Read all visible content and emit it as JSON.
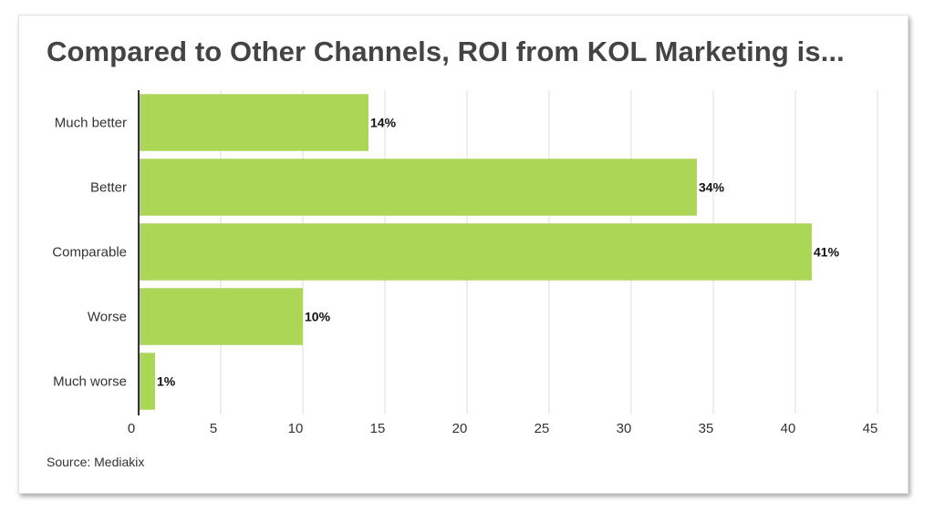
{
  "chart_data": {
    "type": "bar",
    "orientation": "horizontal",
    "title": "Compared to Other Channels, ROI from KOL Marketing is...",
    "source": "Source: Mediakix",
    "categories": [
      "Much better",
      "Better",
      "Comparable",
      "Worse",
      "Much worse"
    ],
    "values": [
      14,
      34,
      41,
      10,
      1
    ],
    "data_labels": [
      "14%",
      "34%",
      "41%",
      "10%",
      "1%"
    ],
    "xlim": [
      0,
      45
    ],
    "xticks": [
      0,
      5,
      10,
      15,
      20,
      25,
      30,
      35,
      40,
      45
    ],
    "xlabel": "",
    "ylabel": "",
    "grid": "vertical",
    "bar_color": "#acd656"
  }
}
